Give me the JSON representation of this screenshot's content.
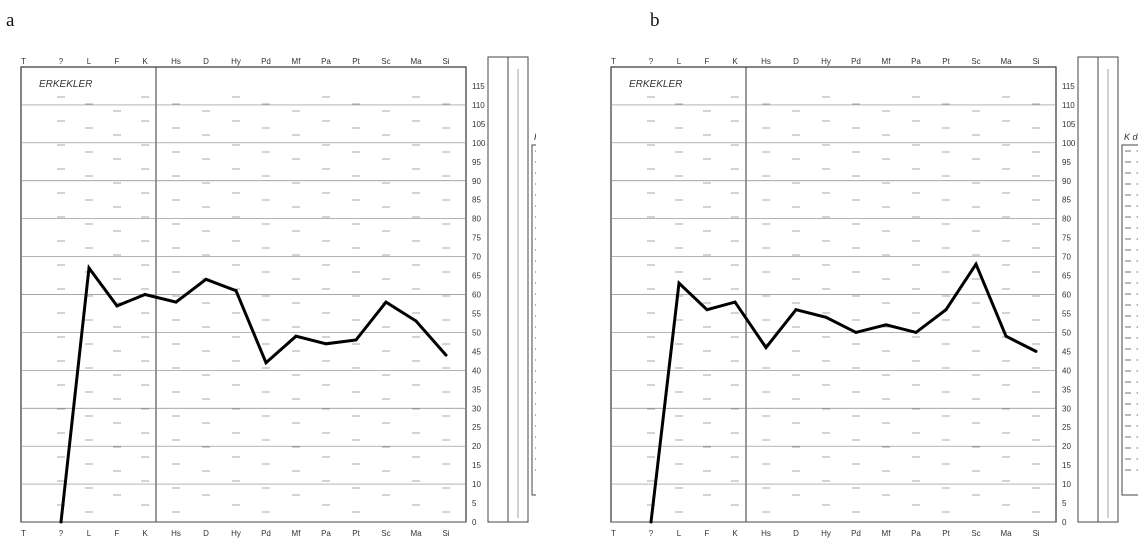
{
  "panels": [
    {
      "letter": "a",
      "title": "ERKEKLER",
      "key_header": "K değerleri"
    },
    {
      "letter": "b",
      "title": "ERKEKLER",
      "key_header": "K değerleri"
    }
  ],
  "chart_data": [
    {
      "type": "line",
      "title": "",
      "panel_label": "a",
      "inner_label": "ERKEKLER",
      "xlabel": "",
      "ylabel": "T",
      "categories": [
        "?",
        "L",
        "F",
        "K",
        "Hs",
        "D",
        "Hy",
        "Pd",
        "Mf",
        "Pa",
        "Pt",
        "Sc",
        "Ma",
        "Si"
      ],
      "series": [
        {
          "values": [
            0,
            67,
            57,
            60,
            58,
            64,
            61,
            42,
            49,
            47,
            48,
            58,
            53,
            44
          ]
        }
      ],
      "ylim": [
        0,
        120
      ],
      "yticks": [
        0,
        5,
        10,
        15,
        20,
        25,
        30,
        35,
        40,
        45,
        50,
        55,
        60,
        65,
        70,
        75,
        80,
        85,
        90,
        95,
        100,
        105,
        110,
        115
      ],
      "grid": true
    },
    {
      "type": "line",
      "title": "",
      "panel_label": "b",
      "inner_label": "ERKEKLER",
      "xlabel": "",
      "ylabel": "T",
      "categories": [
        "?",
        "L",
        "F",
        "K",
        "Hs",
        "D",
        "Hy",
        "Pd",
        "Mf",
        "Pa",
        "Pt",
        "Sc",
        "Ma",
        "Si"
      ],
      "series": [
        {
          "values": [
            0,
            63,
            56,
            58,
            46,
            56,
            54,
            50,
            52,
            50,
            56,
            68,
            49,
            45
          ]
        }
      ],
      "ylim": [
        0,
        120
      ],
      "yticks": [
        0,
        5,
        10,
        15,
        20,
        25,
        30,
        35,
        40,
        45,
        50,
        55,
        60,
        65,
        70,
        75,
        80,
        85,
        90,
        95,
        100,
        105,
        110,
        115
      ],
      "grid": true
    }
  ]
}
